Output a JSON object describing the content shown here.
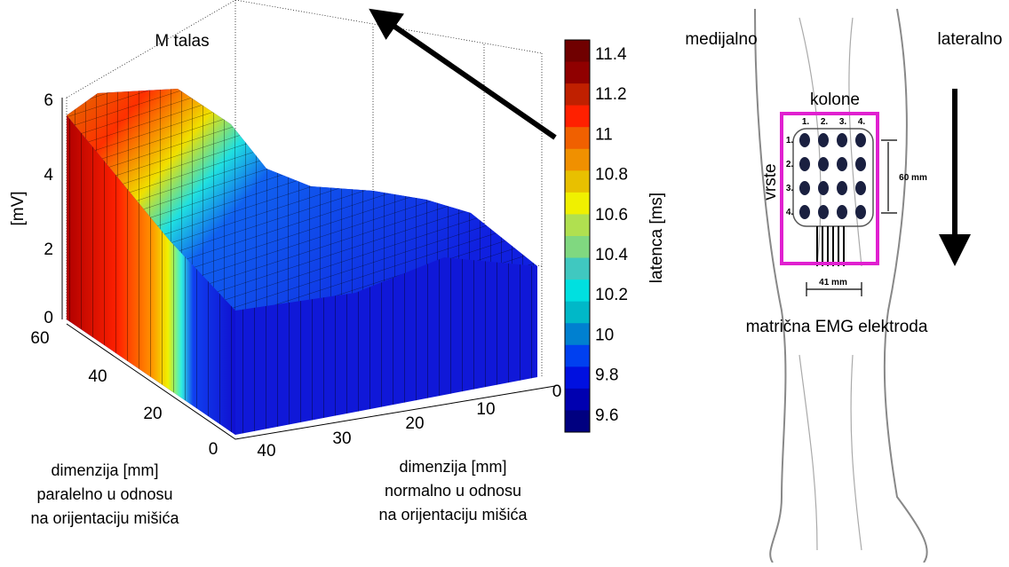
{
  "plot": {
    "title": "M talas",
    "z_label": "[mV]",
    "z_ticks": [
      "0",
      "2",
      "4",
      "6"
    ],
    "parallel_ticks": [
      "60",
      "40",
      "20",
      "0"
    ],
    "normal_ticks": [
      "40",
      "30",
      "20",
      "10",
      "0"
    ],
    "parallel_label": [
      "dimenzija [mm]",
      "paralelno u odnosu",
      "na orijentaciju mišića"
    ],
    "normal_label": [
      "dimenzija [mm]",
      "normalno u odnosu",
      "na orijentaciju mišića"
    ],
    "colorbar": {
      "label": "latenca [ms]",
      "ticks": [
        "11.4",
        "11.2",
        "11",
        "10.8",
        "10.6",
        "10.4",
        "10.2",
        "10",
        "9.8",
        "9.6"
      ]
    }
  },
  "illustration": {
    "medial": "medijalno",
    "lateral": "lateralno",
    "columns_title": "kolone",
    "rows_title": "vrste",
    "column_numbers": [
      "1.",
      "2.",
      "3.",
      "4."
    ],
    "row_numbers": [
      "1.",
      "2.",
      "3.",
      "4."
    ],
    "height": "60 mm",
    "width": "41 mm",
    "caption": "matrična EMG elektroda"
  }
}
